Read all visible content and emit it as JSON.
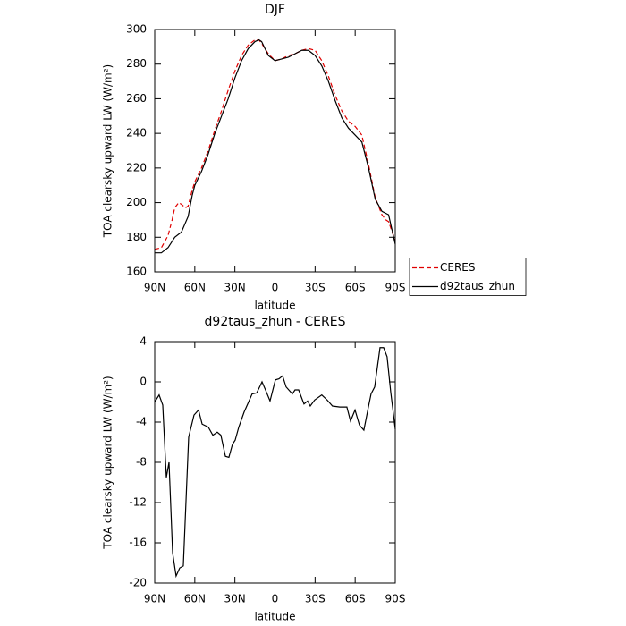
{
  "chart_data": [
    {
      "type": "line",
      "title": "DJF",
      "xlabel": "latitude",
      "ylabel": "TOA clearsky upward LW (W/m²)",
      "xlim": [
        90,
        -90
      ],
      "ylim": [
        160,
        300
      ],
      "xticks": [
        {
          "value": 90,
          "label": "90N"
        },
        {
          "value": 60,
          "label": "60N"
        },
        {
          "value": 30,
          "label": "30N"
        },
        0,
        {
          "value": -30,
          "label": "30S"
        },
        {
          "value": -60,
          "label": "60S"
        },
        {
          "value": -90,
          "label": "90S"
        }
      ],
      "yticks": [
        160,
        180,
        200,
        220,
        240,
        260,
        280,
        300
      ],
      "legend": "right",
      "series": [
        {
          "name": "CERES",
          "color": "#e00000",
          "linestyle": "dashed",
          "x": [
            90,
            85,
            80,
            77,
            75,
            72,
            70,
            67,
            65,
            62,
            60,
            55,
            50,
            45,
            40,
            35,
            30,
            25,
            20,
            15,
            12,
            10,
            5,
            0,
            -5,
            -10,
            -15,
            -20,
            -25,
            -30,
            -35,
            -40,
            -45,
            -50,
            -55,
            -60,
            -65,
            -70,
            -75,
            -80,
            -83,
            -85,
            -90
          ],
          "values": [
            173,
            174,
            181,
            190,
            197,
            200,
            199,
            197,
            198,
            207,
            212,
            220,
            230,
            242,
            253,
            265,
            276,
            285,
            291,
            294,
            294,
            292,
            286,
            282,
            283,
            285,
            286,
            288,
            289,
            288,
            282,
            273,
            262,
            253,
            247,
            244,
            239,
            222,
            203,
            193,
            190,
            189,
            178
          ]
        },
        {
          "name": "d92taus_zhun",
          "color": "#000000",
          "linestyle": "solid",
          "x": [
            90,
            85,
            80,
            75,
            70,
            65,
            62,
            60,
            55,
            50,
            45,
            40,
            35,
            30,
            25,
            20,
            15,
            12,
            10,
            5,
            0,
            -5,
            -10,
            -15,
            -20,
            -25,
            -30,
            -35,
            -40,
            -45,
            -50,
            -55,
            -60,
            -65,
            -70,
            -75,
            -80,
            -85,
            -90
          ],
          "values": [
            171,
            171,
            174,
            180,
            183,
            192,
            204,
            210,
            218,
            228,
            240,
            250,
            260,
            272,
            282,
            289,
            293,
            294,
            293,
            285,
            282,
            283,
            284,
            286,
            288,
            288,
            285,
            279,
            270,
            259,
            249,
            243,
            239,
            235,
            220,
            202,
            195,
            193,
            176
          ]
        }
      ]
    },
    {
      "type": "line",
      "title": "d92taus_zhun - CERES",
      "xlabel": "latitude",
      "ylabel": "TOA clearsky upward LW (W/m²)",
      "xlim": [
        90,
        -90
      ],
      "ylim": [
        -20,
        4
      ],
      "xticks": [
        {
          "value": 90,
          "label": "90N"
        },
        {
          "value": 60,
          "label": "60N"
        },
        {
          "value": 30,
          "label": "30N"
        },
        0,
        {
          "value": -30,
          "label": "30S"
        },
        {
          "value": -60,
          "label": "60S"
        },
        {
          "value": -90,
          "label": "90S"
        }
      ],
      "yticks": [
        -20,
        -16,
        -12,
        -8,
        -4,
        0,
        4
      ],
      "series": [
        {
          "color": "#000000",
          "linestyle": "solid",
          "x": [
            90,
            86.7,
            84,
            81.3,
            79.3,
            76.6,
            74,
            71.3,
            68.6,
            64.6,
            60.6,
            57.2,
            54.5,
            49.9,
            46.5,
            43.2,
            40.5,
            37.1,
            34.5,
            31.8,
            29.8,
            27.1,
            23.1,
            17.1,
            13.7,
            11.1,
            9.7,
            7.1,
            3.7,
            -0.3,
            -3,
            -5.7,
            -8.3,
            -13,
            -15,
            -17.7,
            -21.7,
            -24.4,
            -26.4,
            -29.7,
            -35,
            -39,
            -43,
            -48.5,
            -53.8,
            -56.5,
            -59.9,
            -63.2,
            -66.5,
            -69.9,
            -71.9,
            -74.6,
            -78.6,
            -81.3,
            -83.9,
            -86.6,
            -90
          ],
          "values": [
            -2,
            -1.3,
            -2.3,
            -9.5,
            -8,
            -17,
            -19.3,
            -18.5,
            -18.3,
            -5.5,
            -3.3,
            -2.8,
            -4.2,
            -4.5,
            -5.3,
            -5,
            -5.3,
            -7.4,
            -7.5,
            -6.2,
            -5.8,
            -4.5,
            -3,
            -1.2,
            -1.1,
            -0.4,
            0,
            -0.8,
            -1.9,
            0.2,
            0.3,
            0.6,
            -0.5,
            -1.2,
            -0.8,
            -0.8,
            -2.2,
            -1.9,
            -2.4,
            -1.8,
            -1.3,
            -1.8,
            -2.4,
            -2.5,
            -2.5,
            -3.9,
            -2.8,
            -4.3,
            -4.8,
            -2.5,
            -1.2,
            -0.5,
            3.4,
            3.4,
            2.5,
            -1,
            -4.7
          ]
        }
      ]
    }
  ]
}
